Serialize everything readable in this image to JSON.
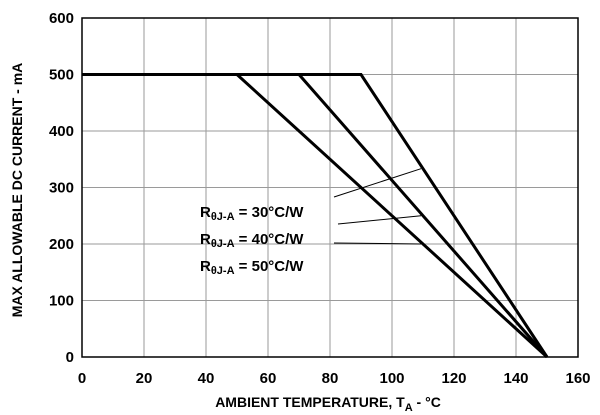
{
  "chart_data": {
    "type": "line",
    "title": "",
    "xlabel": "AMBIENT TEMPERATURE, T",
    "xlabel_sub": "A",
    "xlabel_suffix": " - °C",
    "ylabel": "MAX ALLOWABLE DC CURRENT - mA",
    "xlim": [
      0,
      160
    ],
    "ylim": [
      0,
      600
    ],
    "x_ticks": [
      0,
      20,
      40,
      60,
      80,
      100,
      120,
      140,
      160
    ],
    "y_ticks": [
      0,
      100,
      200,
      300,
      400,
      500,
      600
    ],
    "grid": true,
    "series": [
      {
        "name_main": "R",
        "name_sub": "θJ-A",
        "name_rest": " = 30°C/W",
        "x": [
          0,
          90,
          150
        ],
        "y": [
          500,
          500,
          0
        ]
      },
      {
        "name_main": "R",
        "name_sub": "θJ-A",
        "name_rest": " = 40°C/W",
        "x": [
          0,
          70,
          150
        ],
        "y": [
          500,
          500,
          0
        ]
      },
      {
        "name_main": "R",
        "name_sub": "θJ-A",
        "name_rest": " = 50°C/W",
        "x": [
          0,
          50,
          150
        ],
        "y": [
          500,
          500,
          0
        ]
      }
    ],
    "legend_placement": "center-right with leader lines"
  }
}
